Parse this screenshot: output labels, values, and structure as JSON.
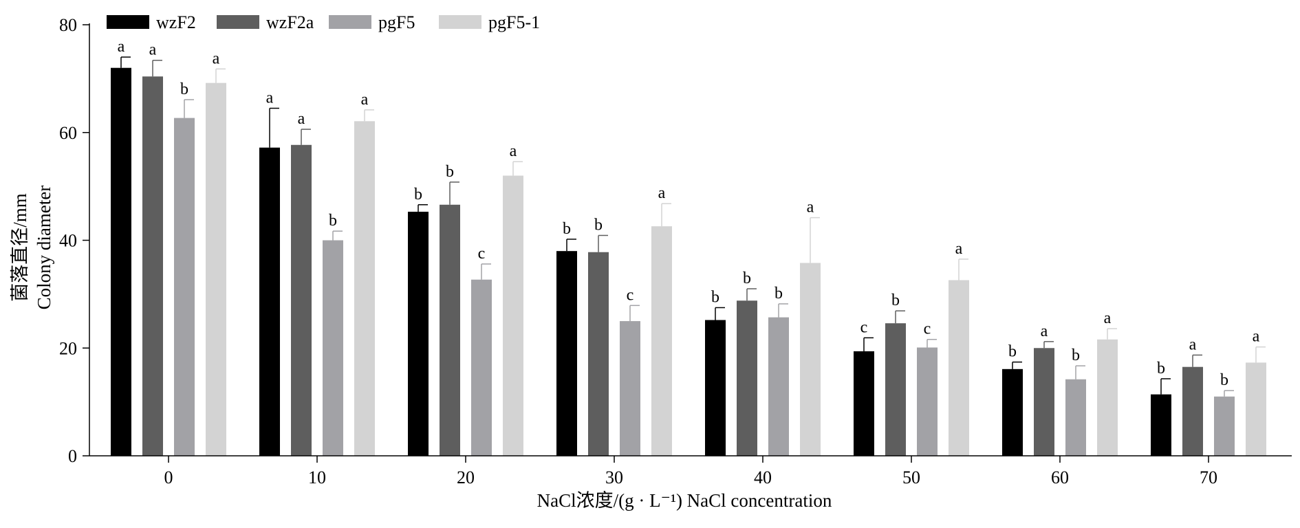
{
  "chart_data": {
    "type": "bar",
    "categories": [
      "0",
      "10",
      "20",
      "30",
      "40",
      "50",
      "60",
      "70"
    ],
    "xlabel": "NaCl浓度/(g · L⁻¹)  NaCl concentration",
    "ylabel_cn": "菌落直径/mm",
    "ylabel_en": "Colony diameter",
    "ylim": [
      0,
      80
    ],
    "yticks": [
      0,
      20,
      40,
      60,
      80
    ],
    "legend_position": "top-left",
    "series": [
      {
        "name": "wzF2",
        "color": "#000000",
        "values": [
          72,
          57.2,
          45.3,
          38,
          25.2,
          19.4,
          16.1,
          11.4
        ],
        "errors": [
          2.0,
          7.3,
          1.3,
          2.2,
          2.3,
          2.5,
          1.3,
          2.9
        ],
        "letters": [
          "a",
          "a",
          "b",
          "b",
          "b",
          "c",
          "b",
          "b"
        ]
      },
      {
        "name": "wzF2a",
        "color": "#5e5e5e",
        "values": [
          70.4,
          57.7,
          46.6,
          37.8,
          28.8,
          24.6,
          20,
          16.5
        ],
        "errors": [
          3.0,
          2.9,
          4.2,
          3.1,
          2.2,
          2.3,
          1.2,
          2.2
        ],
        "letters": [
          "a",
          "a",
          "b",
          "b",
          "b",
          "b",
          "a",
          "a"
        ]
      },
      {
        "name": "pgF5",
        "color": "#a2a2a6",
        "values": [
          62.7,
          40,
          32.7,
          25,
          25.7,
          20.1,
          14.2,
          11
        ],
        "errors": [
          3.4,
          1.7,
          2.9,
          2.9,
          2.5,
          1.5,
          2.5,
          1.1
        ],
        "letters": [
          "b",
          "b",
          "c",
          "c",
          "b",
          "c",
          "b",
          "b"
        ]
      },
      {
        "name": "pgF5-1",
        "color": "#d3d3d3",
        "values": [
          69.2,
          62.1,
          52,
          42.6,
          35.8,
          32.6,
          21.6,
          17.3
        ],
        "errors": [
          2.6,
          2.1,
          2.6,
          4.2,
          8.4,
          3.9,
          2.0,
          2.9
        ],
        "letters": [
          "a",
          "a",
          "a",
          "a",
          "a",
          "a",
          "a",
          "a"
        ]
      }
    ]
  }
}
